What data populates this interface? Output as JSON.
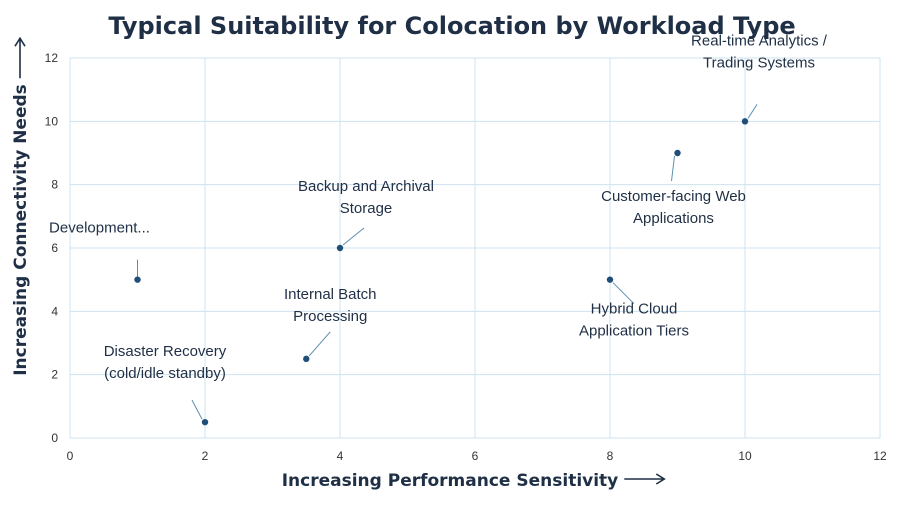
{
  "chart_data": {
    "type": "scatter",
    "title": "Typical Suitability for Colocation by Workload Type",
    "xlabel": "Increasing Performance Sensitivity",
    "ylabel": "Increasing Connectivity Needs",
    "xlim": [
      0,
      12
    ],
    "ylim": [
      0,
      12
    ],
    "xticks": [
      0,
      2,
      4,
      6,
      8,
      10,
      12
    ],
    "yticks": [
      0,
      2,
      4,
      6,
      8,
      10,
      12
    ],
    "grid": true,
    "points": [
      {
        "x": 1,
        "y": 5,
        "label": [
          "Development..."
        ]
      },
      {
        "x": 2,
        "y": 0.5,
        "label": [
          "Disaster Recovery",
          "(cold/idle standby)"
        ]
      },
      {
        "x": 3.5,
        "y": 2.5,
        "label": [
          "Internal Batch",
          "Processing"
        ]
      },
      {
        "x": 4,
        "y": 6,
        "label": [
          "Backup and Archival",
          "Storage"
        ]
      },
      {
        "x": 8,
        "y": 5,
        "label": [
          "Hybrid Cloud",
          "Application Tiers"
        ]
      },
      {
        "x": 9,
        "y": 9,
        "label": [
          "Customer-facing Web",
          "Applications"
        ]
      },
      {
        "x": 10,
        "y": 10,
        "label": [
          "Real-time Analytics /",
          "Trading Systems"
        ]
      }
    ]
  }
}
